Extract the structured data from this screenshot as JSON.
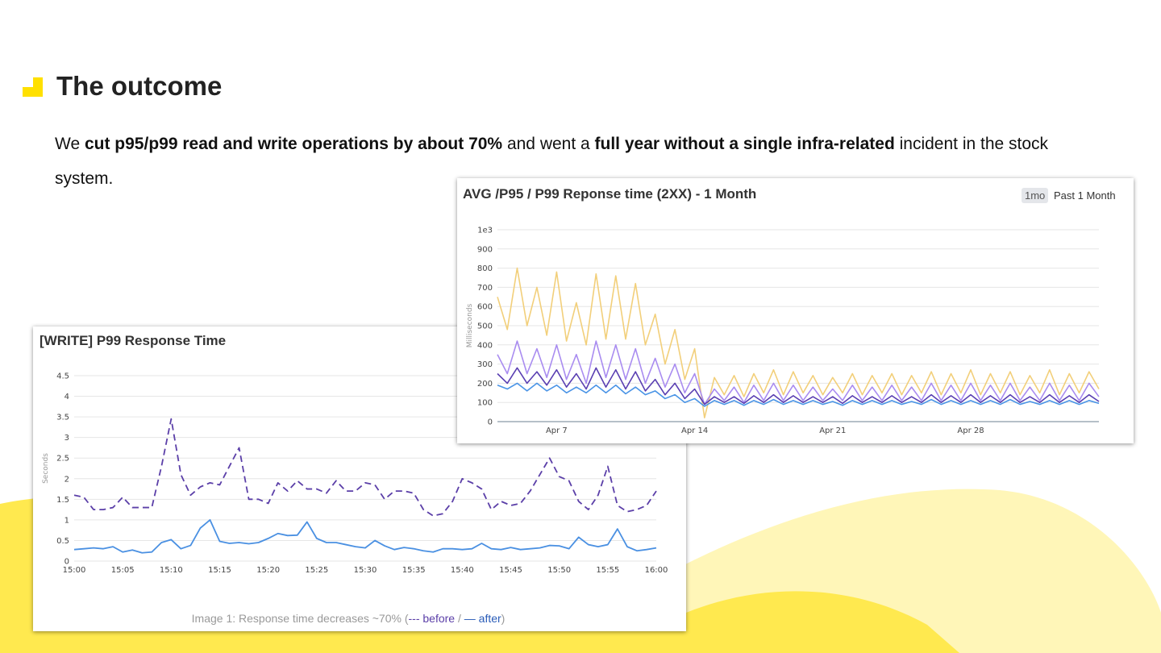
{
  "header": {
    "title": "The outcome"
  },
  "body": {
    "runs": [
      {
        "text": "We ",
        "bold": false
      },
      {
        "text": "cut p95/p99 read and write operations by about 70%",
        "bold": true
      },
      {
        "text": " and went a ",
        "bold": false
      },
      {
        "text": "full year without a single infra-related",
        "bold": true
      },
      {
        "text": " incident in the stock system.",
        "bold": false
      }
    ]
  },
  "caption": {
    "text": "Image 1: Response time decreases ~70% (",
    "before": "--- before",
    "separator": " / ",
    "after": "— after",
    "close": ")"
  },
  "chart_data": [
    {
      "type": "line",
      "title": "AVG /P95 / P99 Reponse time (2XX) - 1 Month",
      "badge": "1mo",
      "range_label": "Past 1 Month",
      "ylabel": "Milliseconds",
      "grid": true,
      "ylim": [
        0,
        1000
      ],
      "yticks": [
        0,
        100,
        200,
        300,
        400,
        500,
        600,
        700,
        800,
        900,
        {
          "value": 1000,
          "label": "1e3"
        }
      ],
      "categories": [
        null,
        null,
        null,
        null,
        null,
        null,
        "Apr 7",
        null,
        null,
        null,
        null,
        null,
        null,
        null,
        null,
        null,
        null,
        null,
        null,
        null,
        "Apr 14",
        null,
        null,
        null,
        null,
        null,
        null,
        null,
        null,
        null,
        null,
        null,
        null,
        null,
        "Apr 21",
        null,
        null,
        null,
        null,
        null,
        null,
        null,
        null,
        null,
        null,
        null,
        null,
        null,
        "Apr 28",
        null,
        null,
        null,
        null,
        null,
        null,
        null,
        null,
        null,
        null,
        null,
        null,
        null
      ],
      "series": [
        {
          "color": "#f2cf7a",
          "values": [
            650,
            480,
            800,
            500,
            700,
            450,
            780,
            420,
            620,
            400,
            770,
            430,
            760,
            430,
            720,
            400,
            560,
            300,
            480,
            220,
            380,
            20,
            230,
            140,
            240,
            130,
            250,
            150,
            270,
            140,
            260,
            150,
            240,
            140,
            230,
            150,
            250,
            140,
            240,
            150,
            250,
            140,
            240,
            150,
            260,
            140,
            250,
            150,
            270,
            140,
            250,
            150,
            260,
            140,
            240,
            150,
            270,
            140,
            250,
            150,
            260,
            170
          ]
        },
        {
          "color": "#a98cf0",
          "values": [
            350,
            250,
            420,
            250,
            380,
            230,
            400,
            220,
            350,
            200,
            420,
            230,
            400,
            220,
            380,
            200,
            330,
            180,
            300,
            150,
            250,
            90,
            170,
            110,
            180,
            100,
            190,
            110,
            200,
            110,
            190,
            110,
            180,
            110,
            170,
            110,
            190,
            110,
            180,
            110,
            190,
            110,
            180,
            110,
            200,
            110,
            190,
            110,
            200,
            110,
            190,
            110,
            200,
            110,
            180,
            110,
            200,
            110,
            190,
            110,
            200,
            130
          ]
        },
        {
          "color": "#5a3fb2",
          "values": [
            250,
            200,
            280,
            200,
            260,
            190,
            270,
            180,
            250,
            170,
            280,
            180,
            270,
            170,
            260,
            160,
            220,
            140,
            200,
            120,
            170,
            90,
            130,
            100,
            130,
            95,
            135,
            100,
            140,
            100,
            135,
            100,
            130,
            100,
            130,
            95,
            135,
            100,
            130,
            100,
            135,
            100,
            130,
            100,
            140,
            100,
            135,
            100,
            140,
            100,
            135,
            100,
            140,
            100,
            130,
            100,
            140,
            100,
            135,
            100,
            140,
            105
          ]
        },
        {
          "color": "#4a94e6",
          "values": [
            190,
            170,
            200,
            160,
            200,
            160,
            190,
            150,
            180,
            150,
            190,
            150,
            190,
            145,
            180,
            140,
            160,
            120,
            140,
            100,
            120,
            80,
            110,
            90,
            110,
            85,
            110,
            90,
            115,
            90,
            110,
            90,
            110,
            90,
            105,
            85,
            110,
            90,
            110,
            90,
            110,
            90,
            105,
            90,
            115,
            90,
            110,
            90,
            110,
            90,
            110,
            90,
            115,
            90,
            105,
            90,
            110,
            90,
            110,
            90,
            110,
            95
          ]
        }
      ]
    },
    {
      "type": "line",
      "title": "[WRITE] P99 Response Time",
      "ylabel": "Seconds",
      "grid": true,
      "ylim": [
        0,
        4.5
      ],
      "yticks": [
        0,
        0.5,
        1,
        1.5,
        2,
        2.5,
        3,
        3.5,
        4,
        4.5
      ],
      "categories": [
        "15:00",
        null,
        null,
        null,
        null,
        "15:05",
        null,
        null,
        null,
        null,
        "15:10",
        null,
        null,
        null,
        null,
        "15:15",
        null,
        null,
        null,
        null,
        "15:20",
        null,
        null,
        null,
        null,
        "15:25",
        null,
        null,
        null,
        null,
        "15:30",
        null,
        null,
        null,
        null,
        "15:35",
        null,
        null,
        null,
        null,
        "15:40",
        null,
        null,
        null,
        null,
        "15:45",
        null,
        null,
        null,
        null,
        "15:50",
        null,
        null,
        null,
        null,
        "15:55",
        null,
        null,
        null,
        null,
        "16:00"
      ],
      "series": [
        {
          "color": "#5b3fa8",
          "dash": true,
          "values": [
            1.6,
            1.55,
            1.25,
            1.25,
            1.3,
            1.55,
            1.3,
            1.3,
            1.3,
            2.3,
            3.45,
            2.1,
            1.6,
            1.8,
            1.9,
            1.85,
            2.3,
            2.75,
            1.5,
            1.5,
            1.4,
            1.9,
            1.7,
            1.95,
            1.75,
            1.75,
            1.65,
            1.95,
            1.7,
            1.7,
            1.9,
            1.85,
            1.5,
            1.7,
            1.7,
            1.65,
            1.25,
            1.1,
            1.15,
            1.45,
            2.0,
            1.9,
            1.75,
            1.25,
            1.45,
            1.35,
            1.4,
            1.7,
            2.1,
            2.5,
            2.05,
            1.95,
            1.45,
            1.25,
            1.6,
            2.3,
            1.35,
            1.2,
            1.25,
            1.35,
            1.7
          ]
        },
        {
          "color": "#4a90e2",
          "dash": false,
          "values": [
            0.28,
            0.3,
            0.32,
            0.3,
            0.35,
            0.22,
            0.27,
            0.2,
            0.22,
            0.45,
            0.52,
            0.3,
            0.38,
            0.8,
            1.0,
            0.48,
            0.43,
            0.45,
            0.42,
            0.45,
            0.55,
            0.67,
            0.62,
            0.63,
            0.95,
            0.55,
            0.45,
            0.45,
            0.4,
            0.35,
            0.32,
            0.5,
            0.37,
            0.28,
            0.33,
            0.3,
            0.25,
            0.22,
            0.3,
            0.3,
            0.28,
            0.3,
            0.43,
            0.3,
            0.28,
            0.33,
            0.28,
            0.3,
            0.32,
            0.38,
            0.37,
            0.3,
            0.58,
            0.4,
            0.35,
            0.4,
            0.78,
            0.35,
            0.25,
            0.28,
            0.32
          ]
        }
      ]
    }
  ]
}
